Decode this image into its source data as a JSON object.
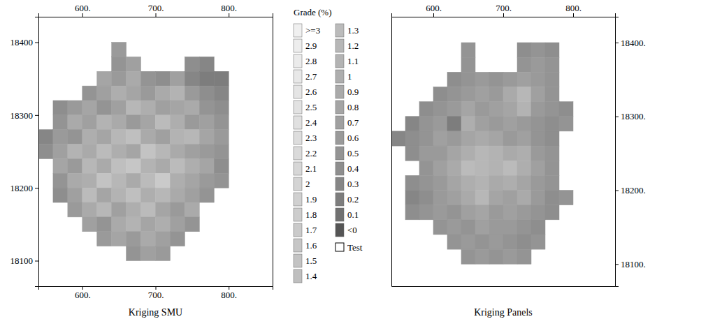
{
  "chart_data": [
    {
      "type": "heatmap",
      "title": "Kriging SMU",
      "xlim": [
        540,
        860
      ],
      "ylim": [
        18065,
        18435
      ],
      "xticks": [
        {
          "value": 600,
          "label": "600."
        },
        {
          "value": 700,
          "label": "700."
        },
        {
          "value": 800,
          "label": "800."
        }
      ],
      "yticks": [
        18100,
        18200,
        18300,
        18400
      ],
      "cell_size": 20,
      "x": [
        550,
        570,
        590,
        610,
        630,
        650,
        670,
        690,
        710,
        730,
        750,
        770,
        790
      ],
      "y": [
        18390,
        18370,
        18350,
        18330,
        18310,
        18290,
        18270,
        18250,
        18230,
        18210,
        18190,
        18170,
        18150,
        18130,
        18110
      ],
      "cells": [
        [
          null,
          null,
          null,
          null,
          null,
          0.6,
          null,
          null,
          null,
          null,
          null,
          null,
          null
        ],
        [
          null,
          null,
          null,
          null,
          null,
          0.5,
          0.7,
          null,
          null,
          null,
          0.4,
          0.3,
          null
        ],
        [
          null,
          null,
          null,
          null,
          0.8,
          0.6,
          0.9,
          0.5,
          0.4,
          0.7,
          0.3,
          0.2,
          0.2
        ],
        [
          null,
          null,
          null,
          0.5,
          0.7,
          1.0,
          0.8,
          0.6,
          0.9,
          1.1,
          0.6,
          0.4,
          0.3
        ],
        [
          null,
          0.4,
          0.6,
          0.8,
          0.5,
          0.7,
          1.2,
          1.0,
          0.7,
          0.8,
          0.9,
          0.5,
          0.4
        ],
        [
          null,
          0.5,
          0.9,
          0.7,
          1.1,
          0.9,
          0.6,
          0.8,
          1.3,
          1.0,
          0.6,
          0.7,
          0.5
        ],
        [
          0.3,
          0.6,
          0.5,
          1.0,
          0.8,
          1.2,
          1.4,
          0.9,
          0.7,
          1.1,
          1.2,
          0.8,
          0.6
        ],
        [
          0.4,
          0.7,
          1.1,
          0.9,
          1.3,
          1.0,
          0.8,
          1.5,
          1.2,
          0.9,
          0.7,
          0.6,
          0.5
        ],
        [
          null,
          0.8,
          0.6,
          1.2,
          0.9,
          1.4,
          1.6,
          1.1,
          0.9,
          1.3,
          1.0,
          0.8,
          0.4
        ],
        [
          null,
          0.5,
          0.9,
          1.0,
          1.5,
          1.2,
          0.9,
          1.3,
          1.7,
          1.0,
          0.8,
          0.6,
          0.5
        ],
        [
          null,
          0.4,
          0.7,
          1.3,
          0.8,
          1.1,
          1.4,
          1.0,
          1.2,
          0.9,
          0.7,
          0.5,
          null
        ],
        [
          null,
          null,
          0.6,
          0.9,
          1.2,
          0.7,
          1.0,
          1.3,
          0.8,
          0.6,
          0.9,
          null,
          null
        ],
        [
          null,
          null,
          null,
          0.7,
          0.5,
          0.9,
          1.1,
          0.8,
          1.0,
          0.7,
          0.5,
          null,
          null
        ],
        [
          null,
          null,
          null,
          null,
          0.6,
          0.8,
          0.6,
          0.9,
          0.7,
          0.5,
          null,
          null,
          null
        ],
        [
          null,
          null,
          null,
          null,
          null,
          null,
          0.5,
          0.7,
          0.6,
          null,
          null,
          null,
          null
        ]
      ]
    },
    {
      "type": "heatmap",
      "title": "Kriging Panels",
      "xlim": [
        540,
        860
      ],
      "ylim": [
        18070,
        18435
      ],
      "xticks": [
        {
          "value": 600,
          "label": "600."
        },
        {
          "value": 700,
          "label": "700."
        },
        {
          "value": 800,
          "label": "800."
        }
      ],
      "yticks": [
        {
          "value": 18100,
          "label": "18100."
        },
        {
          "value": 18200,
          "label": "18200."
        },
        {
          "value": 18300,
          "label": "18300."
        },
        {
          "value": 18400,
          "label": "18400."
        }
      ],
      "cell_size": 20,
      "x": [
        550,
        570,
        590,
        610,
        630,
        650,
        670,
        690,
        710,
        730,
        750,
        770,
        790
      ],
      "y": [
        18390,
        18370,
        18350,
        18330,
        18310,
        18290,
        18270,
        18250,
        18230,
        18210,
        18190,
        18170,
        18150,
        18130,
        18110
      ],
      "cells": [
        [
          null,
          null,
          null,
          null,
          null,
          0.5,
          null,
          null,
          null,
          0.4,
          0.5,
          0.4,
          null
        ],
        [
          null,
          null,
          null,
          null,
          null,
          0.5,
          null,
          null,
          null,
          0.5,
          0.6,
          0.5,
          null
        ],
        [
          null,
          null,
          null,
          null,
          0.4,
          0.5,
          0.6,
          0.5,
          0.6,
          0.7,
          0.6,
          0.5,
          null
        ],
        [
          null,
          null,
          null,
          0.4,
          0.5,
          0.6,
          0.7,
          0.6,
          0.9,
          1.2,
          0.7,
          0.5,
          null
        ],
        [
          null,
          null,
          0.4,
          0.5,
          0.6,
          0.8,
          0.6,
          0.7,
          0.8,
          1.1,
          0.6,
          0.5,
          0.4
        ],
        [
          null,
          0.3,
          0.5,
          0.6,
          0.2,
          1.0,
          0.7,
          0.6,
          0.7,
          0.6,
          0.5,
          0.4,
          0.5
        ],
        [
          0.3,
          0.4,
          0.5,
          0.7,
          0.6,
          0.8,
          0.9,
          0.8,
          0.6,
          0.7,
          0.5,
          0.4,
          null
        ],
        [
          null,
          0.4,
          0.6,
          0.6,
          0.8,
          1.0,
          1.2,
          1.1,
          0.9,
          1.0,
          0.6,
          0.5,
          null
        ],
        [
          null,
          null,
          0.5,
          0.7,
          0.9,
          1.3,
          1.2,
          1.1,
          1.3,
          1.0,
          0.7,
          0.5,
          null
        ],
        [
          null,
          0.4,
          0.5,
          0.6,
          0.8,
          1.0,
          1.1,
          0.9,
          1.0,
          0.8,
          0.6,
          0.5,
          null
        ],
        [
          null,
          0.3,
          0.4,
          0.6,
          0.7,
          0.9,
          1.2,
          0.8,
          0.7,
          0.9,
          0.6,
          0.4,
          0.5
        ],
        [
          null,
          0.4,
          0.5,
          0.6,
          0.5,
          0.7,
          0.8,
          0.6,
          0.7,
          0.6,
          0.5,
          0.4,
          null
        ],
        [
          null,
          null,
          null,
          0.5,
          0.6,
          0.5,
          0.7,
          0.6,
          0.6,
          0.5,
          0.4,
          null,
          null
        ],
        [
          null,
          null,
          null,
          null,
          0.5,
          0.6,
          0.5,
          0.6,
          0.5,
          0.4,
          0.5,
          null,
          null
        ],
        [
          null,
          null,
          null,
          null,
          null,
          0.5,
          0.6,
          0.5,
          0.6,
          0.5,
          null,
          null,
          null
        ]
      ]
    }
  ],
  "colorbar": {
    "title": "Grade (%)",
    "range": [
      0,
      3
    ],
    "ticks": [
      [
        {
          "value": 3,
          "label": ">=3"
        },
        2.9,
        2.8,
        2.7,
        2.6,
        2.5,
        2.4,
        2.3,
        2.2,
        2.1,
        2,
        1.9,
        1.8,
        1.7,
        1.6,
        1.5,
        1.4
      ],
      [
        1.3,
        1.2,
        1.1,
        1,
        0.9,
        0.8,
        0.7,
        0.6,
        0.5,
        0.4,
        0.3,
        0.2,
        0.1,
        {
          "value": 0,
          "label": "<0"
        }
      ]
    ],
    "test_label": "Test"
  }
}
